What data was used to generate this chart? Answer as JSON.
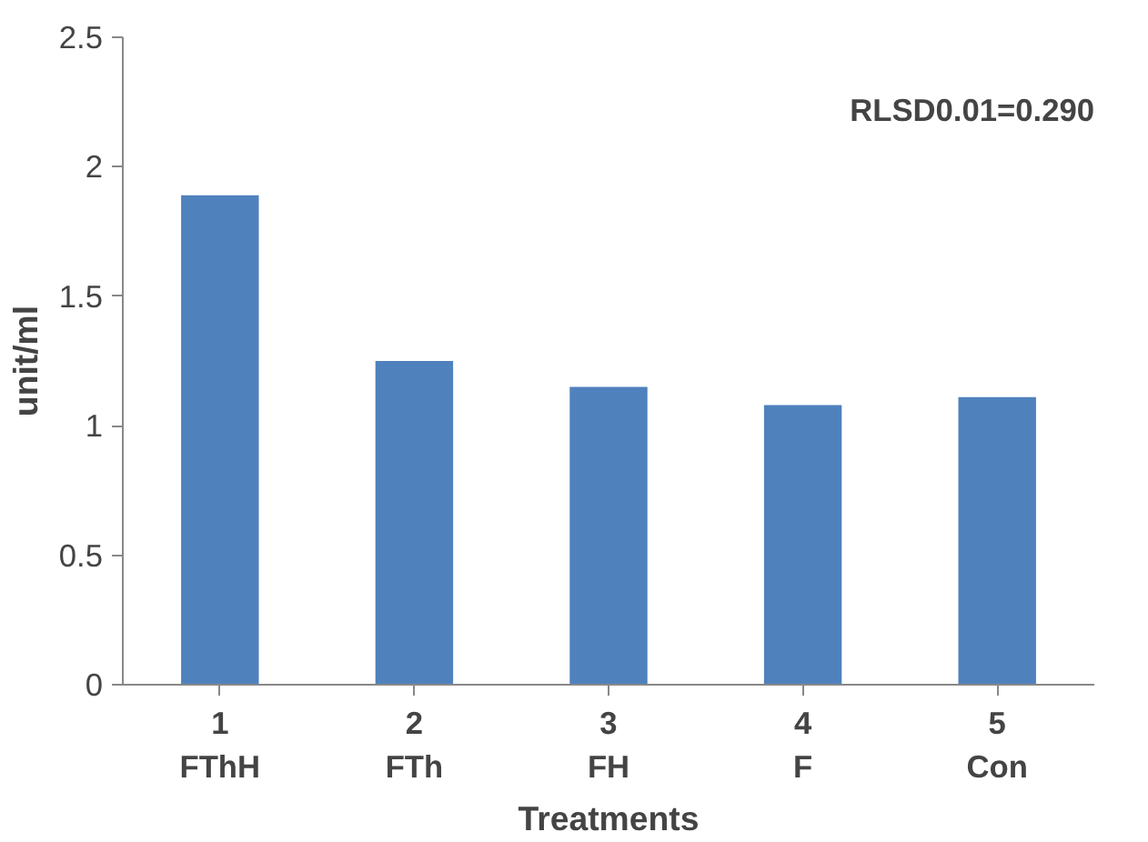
{
  "chart_data": {
    "type": "bar",
    "xlabel": "Treatments",
    "ylabel": "unit/ml",
    "categories": [
      "1\nFThH",
      "2\nFTh",
      "3\nFH",
      "4\nF",
      "5\nCon"
    ],
    "values": [
      1.89,
      1.25,
      1.15,
      1.08,
      1.11
    ],
    "color": "#4f81bd",
    "ylim": [
      0,
      2.5
    ],
    "yticks": [
      0,
      0.5,
      1,
      1.5,
      2,
      2.5
    ],
    "grid": false,
    "annotations": [
      "RLSD0.01=0.290"
    ]
  }
}
